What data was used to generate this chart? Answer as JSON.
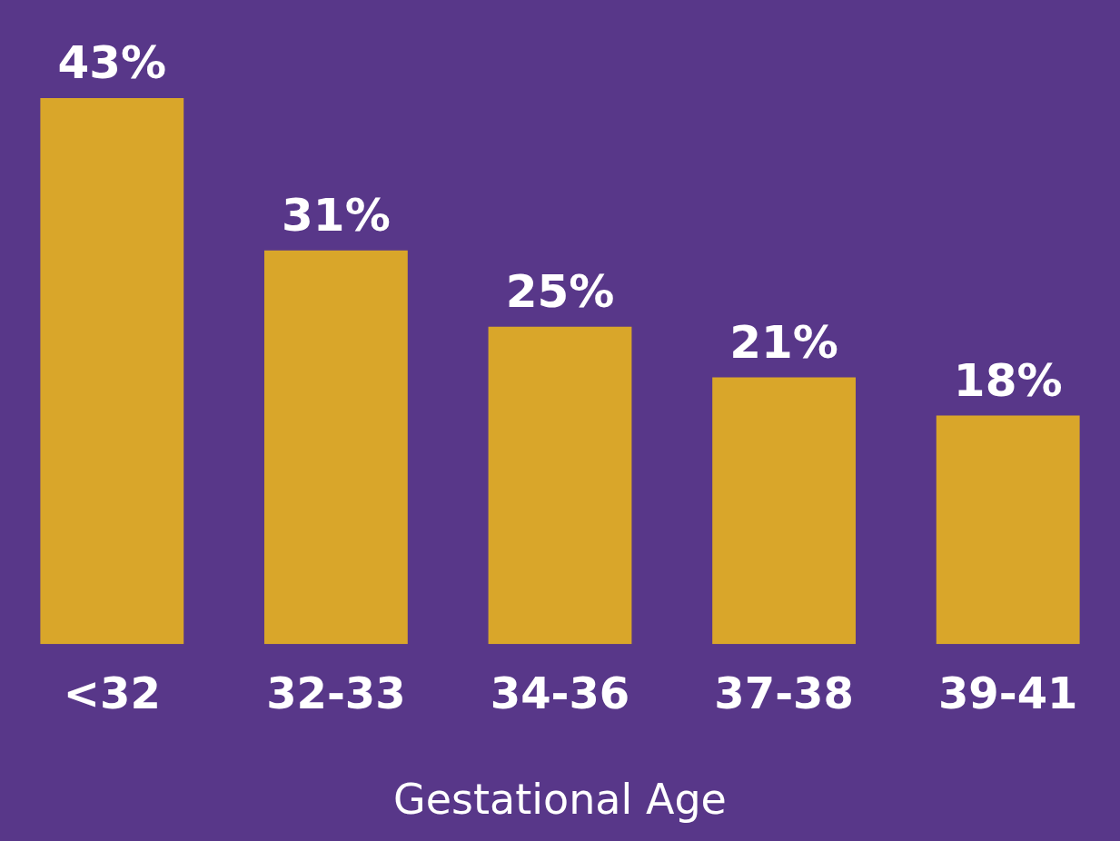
{
  "chart_data": {
    "type": "bar",
    "xlabel": "Gestational Age",
    "categories": [
      "<32",
      "32-33",
      "34-36",
      "37-38",
      "39-41"
    ],
    "values": [
      43,
      31,
      25,
      21,
      18
    ],
    "color": "#d9a62a",
    "value_labels": [
      "43%",
      "31%",
      "25%",
      "21%",
      "18%"
    ],
    "grid": false,
    "legend": false
  }
}
